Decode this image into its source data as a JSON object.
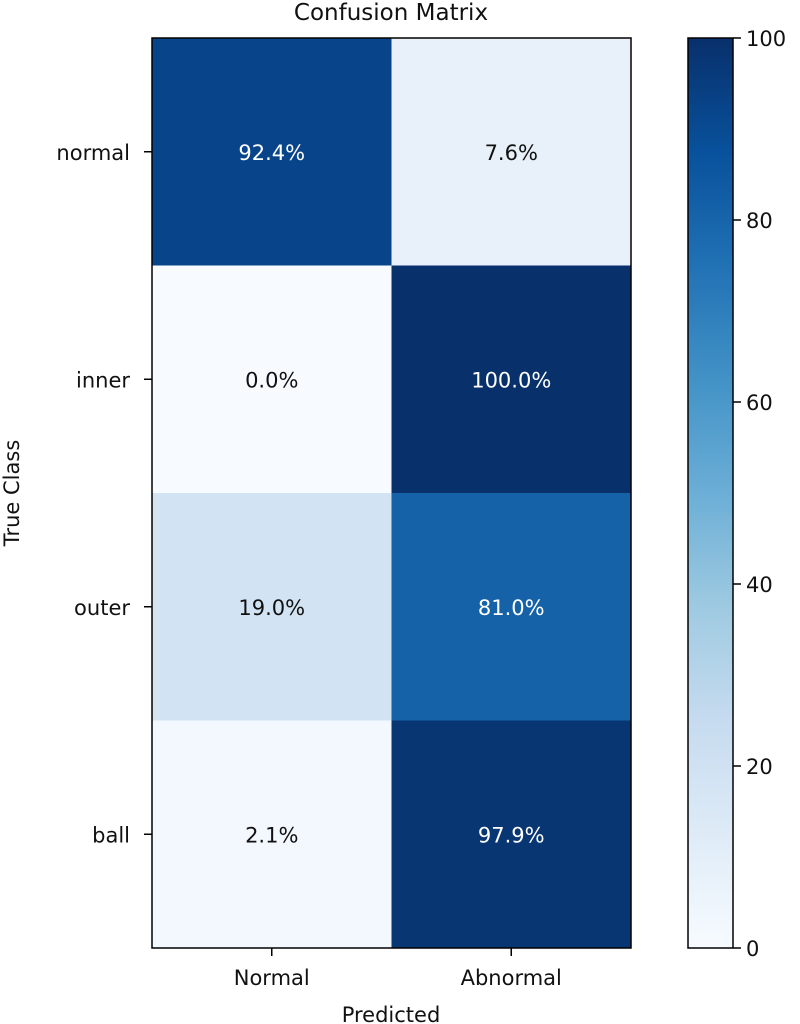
{
  "chart_data": {
    "type": "heatmap",
    "title": "Confusion Matrix",
    "xlabel": "Predicted",
    "ylabel": "True Class",
    "x_categories": [
      "Normal",
      "Abnormal"
    ],
    "y_categories": [
      "normal",
      "inner",
      "outer",
      "ball"
    ],
    "values": [
      [
        92.4,
        7.6
      ],
      [
        0.0,
        100.0
      ],
      [
        19.0,
        81.0
      ],
      [
        2.1,
        97.9
      ]
    ],
    "cell_labels": [
      [
        "92.4%",
        "7.6%"
      ],
      [
        "0.0%",
        "100.0%"
      ],
      [
        "19.0%",
        "81.0%"
      ],
      [
        "2.1%",
        "97.9%"
      ]
    ],
    "colorbar": {
      "min": 0,
      "max": 100,
      "ticks": [
        0,
        20,
        40,
        60,
        80,
        100
      ],
      "tick_labels": [
        "0",
        "20",
        "40",
        "60",
        "80",
        "100"
      ]
    },
    "colormap": [
      "#f7fbff",
      "#deebf7",
      "#c6dbef",
      "#9ecae1",
      "#6baed6",
      "#4292c6",
      "#2171b5",
      "#08519c",
      "#08306b"
    ],
    "grid": false
  }
}
